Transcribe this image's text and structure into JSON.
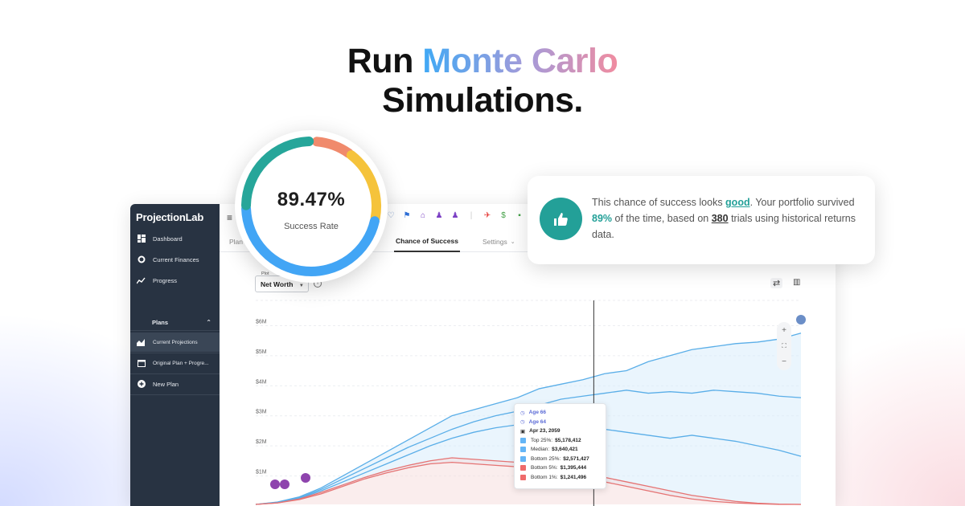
{
  "headline": {
    "run": "Run",
    "monte_carlo": "Monte Carlo",
    "simulations": "Simulations."
  },
  "gauge": {
    "value": "89.47%",
    "label": "Success Rate",
    "success_fraction": 0.8947,
    "colors": [
      "#f08a6c",
      "#f5c33b",
      "#42a5f5",
      "#26a69a"
    ]
  },
  "callout": {
    "text_before_good": "This chance of success looks ",
    "good": "good",
    "text_after_good": ". Your portfolio survived ",
    "percent": "89%",
    "text_after_percent": " of the time, based on ",
    "trials": "380",
    "text_end": " trials using historical returns data.",
    "icon": "thumbs-up-icon",
    "accent_color": "#23a098"
  },
  "sidebar": {
    "brand": "ProjectionLab",
    "items": [
      {
        "label": "Dashboard",
        "icon": "dashboard-icon"
      },
      {
        "label": "Current Finances",
        "icon": "pie-icon"
      },
      {
        "label": "Progress",
        "icon": "trend-icon"
      }
    ],
    "plans_header": "Plans",
    "plans": [
      {
        "label": "Current Projections",
        "icon": "area-chart-icon",
        "active": true
      },
      {
        "label": "Original Plan + Progre...",
        "icon": "calendar-icon",
        "active": false
      },
      {
        "label": "New Plan",
        "icon": "add-circle-icon",
        "active": false
      }
    ]
  },
  "tabs": {
    "plan": "Plan",
    "chance": "Chance of Success",
    "settings": "Settings"
  },
  "plot": {
    "label": "Plot",
    "value": "Net Worth"
  },
  "tooltip": {
    "age1": "Age 66",
    "age2": "Age 64",
    "date": "Apr 23, 2059",
    "rows": [
      {
        "label": "Top 25%:",
        "value": "$5,178,412",
        "color": "#64b5f6"
      },
      {
        "label": "Median:",
        "value": "$3,640,421",
        "color": "#64b5f6"
      },
      {
        "label": "Bottom 25%:",
        "value": "$2,571,427",
        "color": "#64b5f6"
      },
      {
        "label": "Bottom 5%:",
        "value": "$1,395,444",
        "color": "#ef6b6b"
      },
      {
        "label": "Bottom 1%:",
        "value": "$1,241,496",
        "color": "#ef6b6b"
      }
    ]
  },
  "chart_data": {
    "type": "line",
    "y_ticks": [
      "$6M",
      "$5M",
      "$4M",
      "$3M",
      "$2M",
      "$1M"
    ],
    "ylim": [
      0,
      6.2
    ],
    "x": [
      0,
      2,
      4,
      6,
      8,
      10,
      12,
      14,
      16,
      18,
      20,
      22,
      24,
      26,
      28,
      30,
      32,
      34,
      36,
      38,
      40,
      42,
      44,
      46,
      48,
      50
    ],
    "series": [
      {
        "name": "Top 25%",
        "color": "#5aaee8",
        "values": [
          0,
          0.08,
          0.25,
          0.55,
          0.95,
          1.35,
          1.75,
          2.15,
          2.55,
          2.95,
          3.15,
          3.35,
          3.55,
          3.85,
          4.0,
          4.15,
          4.35,
          4.45,
          4.75,
          4.95,
          5.15,
          5.25,
          5.35,
          5.4,
          5.5,
          5.7
        ]
      },
      {
        "name": "Median",
        "color": "#5aaee8",
        "values": [
          0,
          0.07,
          0.22,
          0.5,
          0.85,
          1.2,
          1.55,
          1.9,
          2.2,
          2.5,
          2.75,
          2.95,
          3.1,
          3.3,
          3.5,
          3.6,
          3.7,
          3.8,
          3.7,
          3.75,
          3.7,
          3.8,
          3.75,
          3.7,
          3.6,
          3.55
        ]
      },
      {
        "name": "Bottom 25%",
        "color": "#5aaee8",
        "values": [
          0,
          0.06,
          0.2,
          0.45,
          0.75,
          1.05,
          1.35,
          1.65,
          1.95,
          2.2,
          2.4,
          2.55,
          2.65,
          2.7,
          2.6,
          2.55,
          2.5,
          2.4,
          2.3,
          2.2,
          2.3,
          2.2,
          2.1,
          1.95,
          1.8,
          1.6
        ]
      },
      {
        "name": "Bottom 5%",
        "color": "#e57373",
        "values": [
          0,
          0.05,
          0.18,
          0.4,
          0.65,
          0.9,
          1.12,
          1.3,
          1.45,
          1.55,
          1.5,
          1.45,
          1.4,
          1.35,
          1.2,
          1.05,
          0.9,
          0.75,
          0.6,
          0.45,
          0.3,
          0.2,
          0.1,
          0.04,
          0.01,
          0
        ]
      },
      {
        "name": "Bottom 1%",
        "color": "#e57373",
        "values": [
          0,
          0.05,
          0.16,
          0.35,
          0.6,
          0.85,
          1.05,
          1.22,
          1.35,
          1.4,
          1.35,
          1.3,
          1.25,
          1.2,
          1.05,
          0.9,
          0.75,
          0.6,
          0.45,
          0.3,
          0.18,
          0.1,
          0.05,
          0.02,
          0,
          0
        ]
      }
    ],
    "cursor_x": 31,
    "grid": true
  }
}
